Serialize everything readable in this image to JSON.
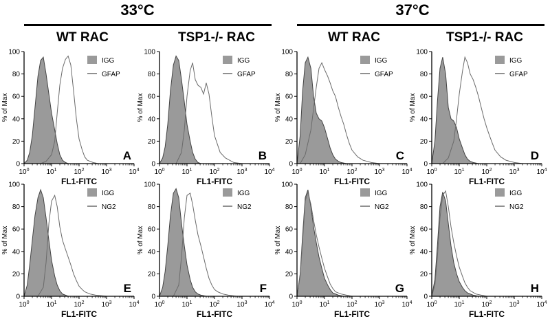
{
  "figure": {
    "temperatures": [
      "33°C",
      "37°C"
    ],
    "groups": [
      "WT RAC",
      "TSP1-/- RAC",
      "WT RAC",
      "TSP1-/- RAC"
    ]
  },
  "chart_data": [
    {
      "type": "area",
      "panel": "A",
      "xlabel": "FL1-FITC",
      "ylabel": "% of Max",
      "xscale": "log",
      "xlim": [
        1,
        10000
      ],
      "ylim": [
        0,
        100
      ],
      "xticks": [
        1,
        10,
        100,
        1000,
        10000
      ],
      "yticks": [
        0,
        20,
        40,
        60,
        80,
        100
      ],
      "series": [
        {
          "name": "IGG",
          "style": "filled-gray",
          "x": [
            1,
            1.3,
            1.6,
            2,
            2.5,
            3.2,
            4,
            5,
            6.3,
            8,
            10,
            13,
            16,
            20,
            25,
            32,
            40
          ],
          "y": [
            0,
            3,
            10,
            25,
            50,
            78,
            92,
            95,
            80,
            62,
            45,
            30,
            18,
            8,
            3,
            1,
            0
          ]
        },
        {
          "name": "GFAP",
          "style": "gray-line",
          "x": [
            4,
            6.3,
            10,
            13,
            16,
            20,
            25,
            32,
            40,
            50,
            63,
            80,
            100,
            130,
            160,
            200,
            320,
            500,
            1000
          ],
          "y": [
            0,
            2,
            8,
            20,
            45,
            70,
            85,
            93,
            96,
            88,
            65,
            40,
            22,
            12,
            6,
            3,
            1,
            0,
            0
          ]
        }
      ]
    },
    {
      "type": "area",
      "panel": "B",
      "xlabel": "FL1-FITC",
      "ylabel": "% of Max",
      "xscale": "log",
      "xlim": [
        1,
        10000
      ],
      "ylim": [
        0,
        100
      ],
      "xticks": [
        1,
        10,
        100,
        1000,
        10000
      ],
      "yticks": [
        0,
        20,
        40,
        60,
        80,
        100
      ],
      "series": [
        {
          "name": "IGG",
          "style": "filled-gray",
          "x": [
            1,
            1.3,
            1.6,
            2,
            2.5,
            3.2,
            4,
            5,
            6.3,
            8,
            10,
            13,
            16,
            20,
            25,
            32
          ],
          "y": [
            0,
            5,
            15,
            35,
            65,
            88,
            96,
            92,
            75,
            55,
            35,
            20,
            10,
            4,
            1,
            0
          ]
        },
        {
          "name": "GFAP",
          "style": "gray-line",
          "x": [
            4,
            6.3,
            8,
            10,
            13,
            16,
            20,
            25,
            32,
            40,
            50,
            63,
            80,
            100,
            160,
            250,
            500,
            1000
          ],
          "y": [
            0,
            10,
            30,
            60,
            83,
            90,
            75,
            70,
            68,
            62,
            72,
            62,
            42,
            25,
            10,
            5,
            1,
            0
          ]
        }
      ]
    },
    {
      "type": "area",
      "panel": "C",
      "xlabel": "FL1-FITC",
      "ylabel": "% of Max",
      "xscale": "log",
      "xlim": [
        1,
        10000
      ],
      "ylim": [
        0,
        100
      ],
      "xticks": [
        1,
        10,
        100,
        1000,
        10000
      ],
      "yticks": [
        0,
        20,
        40,
        60,
        80,
        100
      ],
      "series": [
        {
          "name": "IGG",
          "style": "filled-gray",
          "x": [
            1,
            1.3,
            1.6,
            2,
            2.5,
            3.2,
            4,
            5,
            6.3,
            8,
            10,
            13,
            16,
            20,
            25,
            32,
            40,
            63,
            100
          ],
          "y": [
            0,
            25,
            65,
            90,
            95,
            85,
            60,
            45,
            40,
            38,
            32,
            22,
            14,
            8,
            4,
            2,
            1,
            0,
            0
          ]
        },
        {
          "name": "GFAP",
          "style": "gray-line",
          "x": [
            1.3,
            2,
            3.2,
            5,
            6.3,
            8,
            10,
            13,
            16,
            20,
            25,
            32,
            40,
            50,
            63,
            80,
            100,
            160,
            250,
            500,
            1000
          ],
          "y": [
            0,
            8,
            30,
            68,
            85,
            90,
            84,
            78,
            72,
            65,
            60,
            50,
            42,
            35,
            26,
            18,
            12,
            6,
            3,
            1,
            0
          ]
        }
      ]
    },
    {
      "type": "area",
      "panel": "D",
      "xlabel": "FL1-FITC",
      "ylabel": "% of Max",
      "xscale": "log",
      "xlim": [
        1,
        10000
      ],
      "ylim": [
        0,
        100
      ],
      "xticks": [
        1,
        10,
        100,
        1000,
        10000
      ],
      "yticks": [
        0,
        20,
        40,
        60,
        80,
        100
      ],
      "series": [
        {
          "name": "IGG",
          "style": "filled-gray",
          "x": [
            1,
            1.3,
            1.6,
            2,
            2.5,
            3.2,
            4,
            5,
            6.3,
            8,
            10,
            13,
            16,
            20,
            25,
            32,
            50,
            100
          ],
          "y": [
            0,
            20,
            55,
            85,
            95,
            80,
            50,
            40,
            38,
            32,
            22,
            14,
            8,
            4,
            2,
            1,
            0,
            0
          ]
        },
        {
          "name": "GFAP",
          "style": "gray-line",
          "x": [
            2.5,
            4,
            6.3,
            8,
            10,
            13,
            16,
            20,
            25,
            32,
            40,
            50,
            63,
            80,
            100,
            130,
            160,
            200,
            320,
            500,
            1000,
            2000
          ],
          "y": [
            0,
            5,
            20,
            40,
            62,
            82,
            95,
            90,
            80,
            75,
            68,
            60,
            50,
            40,
            32,
            24,
            18,
            12,
            6,
            3,
            1,
            0
          ]
        }
      ]
    },
    {
      "type": "area",
      "panel": "E",
      "xlabel": "FL1-FITC",
      "ylabel": "% of Max",
      "xscale": "log",
      "xlim": [
        1,
        10000
      ],
      "ylim": [
        0,
        100
      ],
      "xticks": [
        1,
        10,
        100,
        1000,
        10000
      ],
      "yticks": [
        0,
        20,
        40,
        60,
        80,
        100
      ],
      "series": [
        {
          "name": "IGG",
          "style": "filled-gray",
          "x": [
            1,
            1.3,
            1.6,
            2,
            2.5,
            3.2,
            4,
            5,
            6.3,
            8,
            10,
            13,
            16,
            20,
            25,
            32,
            40,
            63
          ],
          "y": [
            0,
            10,
            28,
            50,
            72,
            88,
            95,
            88,
            70,
            50,
            32,
            18,
            10,
            5,
            2,
            1,
            0,
            0
          ]
        },
        {
          "name": "NG2",
          "style": "gray-line",
          "x": [
            3.2,
            5,
            6.3,
            8,
            10,
            13,
            16,
            20,
            25,
            32,
            40,
            50,
            63,
            80,
            100,
            130,
            160,
            250,
            400,
            1000
          ],
          "y": [
            0,
            8,
            30,
            65,
            85,
            90,
            80,
            62,
            50,
            42,
            35,
            28,
            20,
            14,
            9,
            6,
            4,
            2,
            1,
            0
          ]
        }
      ]
    },
    {
      "type": "area",
      "panel": "F",
      "xlabel": "FL1-FITC",
      "ylabel": "% of Max",
      "xscale": "log",
      "xlim": [
        1,
        10000
      ],
      "ylim": [
        0,
        100
      ],
      "xticks": [
        1,
        10,
        100,
        1000,
        10000
      ],
      "yticks": [
        0,
        20,
        40,
        60,
        80,
        100
      ],
      "series": [
        {
          "name": "IGG",
          "style": "filled-gray",
          "x": [
            1,
            1.3,
            1.6,
            2,
            2.5,
            3.2,
            4,
            5,
            6.3,
            8,
            10,
            13,
            16,
            20,
            25,
            32,
            50
          ],
          "y": [
            0,
            8,
            22,
            45,
            72,
            92,
            96,
            88,
            65,
            45,
            28,
            15,
            8,
            4,
            2,
            1,
            0
          ]
        },
        {
          "name": "NG2",
          "style": "gray-line",
          "x": [
            3.2,
            5,
            6.3,
            8,
            10,
            13,
            16,
            20,
            25,
            32,
            40,
            50,
            63,
            80,
            100,
            130,
            200,
            320,
            630
          ],
          "y": [
            0,
            10,
            35,
            70,
            90,
            92,
            82,
            68,
            55,
            45,
            35,
            25,
            16,
            10,
            6,
            4,
            2,
            1,
            0
          ]
        }
      ]
    },
    {
      "type": "area",
      "panel": "G",
      "xlabel": "FL1-FITC",
      "ylabel": "% of Max",
      "xscale": "log",
      "xlim": [
        1,
        10000
      ],
      "ylim": [
        0,
        100
      ],
      "xticks": [
        1,
        10,
        100,
        1000,
        10000
      ],
      "yticks": [
        0,
        20,
        40,
        60,
        80,
        100
      ],
      "series": [
        {
          "name": "IGG",
          "style": "filled-gray",
          "x": [
            1,
            1.3,
            1.6,
            2,
            2.5,
            3.2,
            4,
            5,
            6.3,
            8,
            10,
            13,
            16,
            20,
            32,
            50
          ],
          "y": [
            0,
            20,
            55,
            88,
            95,
            80,
            62,
            48,
            35,
            25,
            16,
            10,
            6,
            3,
            1,
            0
          ]
        },
        {
          "name": "NG2",
          "style": "gray-line",
          "x": [
            1,
            1.3,
            1.6,
            2,
            2.5,
            3.2,
            4,
            5,
            6.3,
            8,
            10,
            13,
            16,
            20,
            25,
            40,
            63,
            100
          ],
          "y": [
            0,
            18,
            50,
            85,
            93,
            82,
            68,
            55,
            44,
            34,
            25,
            17,
            11,
            7,
            4,
            2,
            1,
            0
          ]
        }
      ]
    },
    {
      "type": "area",
      "panel": "H",
      "xlabel": "FL1-FITC",
      "ylabel": "% of Max",
      "xscale": "log",
      "xlim": [
        1,
        10000
      ],
      "ylim": [
        0,
        100
      ],
      "xticks": [
        1,
        10,
        100,
        1000,
        10000
      ],
      "yticks": [
        0,
        20,
        40,
        60,
        80,
        100
      ],
      "series": [
        {
          "name": "IGG",
          "style": "filled-gray",
          "x": [
            1,
            1.3,
            1.6,
            2,
            2.5,
            3.2,
            4,
            5,
            6.3,
            8,
            10,
            13,
            16,
            20,
            32,
            50
          ],
          "y": [
            0,
            15,
            45,
            80,
            93,
            85,
            65,
            45,
            30,
            20,
            13,
            8,
            5,
            3,
            1,
            0
          ]
        },
        {
          "name": "NG2",
          "style": "gray-line",
          "x": [
            1,
            1.3,
            1.6,
            2,
            2.5,
            3.2,
            4,
            5,
            6.3,
            8,
            10,
            13,
            16,
            20,
            25,
            40,
            63,
            100
          ],
          "y": [
            0,
            10,
            35,
            70,
            90,
            94,
            80,
            62,
            48,
            36,
            26,
            18,
            12,
            8,
            5,
            2,
            1,
            0
          ]
        }
      ]
    }
  ]
}
